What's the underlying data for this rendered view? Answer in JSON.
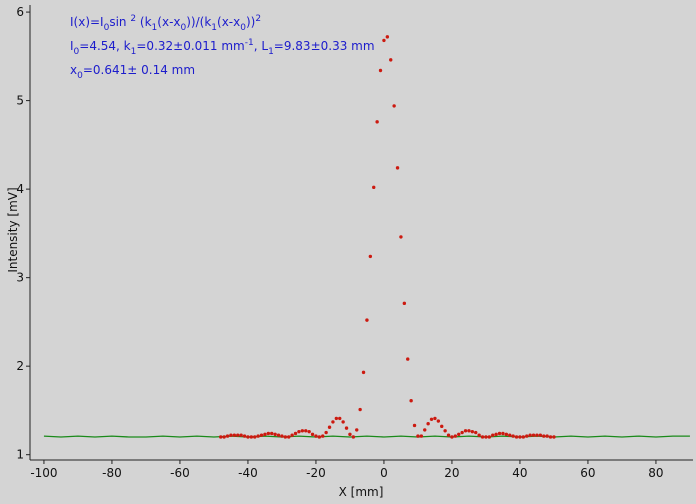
{
  "chart_data": {
    "type": "scatter",
    "xlabel": "X [mm]",
    "ylabel": "Intensity [mV]",
    "xlim": [
      -104.1,
      90.9
    ],
    "ylim": [
      0.94,
      6.08
    ],
    "xticks": [
      -100,
      -80,
      -60,
      -40,
      -20,
      0,
      20,
      40,
      60,
      80
    ],
    "yticks": [
      1,
      2,
      3,
      4,
      5,
      6
    ],
    "grid": false,
    "annotations": [
      [
        {
          "text": "I(x)=I"
        },
        {
          "text": "0",
          "pos": "sub"
        },
        {
          "text": "sin "
        },
        {
          "text": "2",
          "pos": "sup"
        },
        {
          "text": " (k"
        },
        {
          "text": "1",
          "pos": "sub"
        },
        {
          "text": "(x-x"
        },
        {
          "text": "0",
          "pos": "sub"
        },
        {
          "text": "))/(k"
        },
        {
          "text": "1",
          "pos": "sub"
        },
        {
          "text": "(x-x"
        },
        {
          "text": "0",
          "pos": "sub"
        },
        {
          "text": "))"
        },
        {
          "text": "2",
          "pos": "sup"
        }
      ],
      [
        {
          "text": "I"
        },
        {
          "text": "0",
          "pos": "sub"
        },
        {
          "text": "=4.54,  k"
        },
        {
          "text": "1",
          "pos": "sub"
        },
        {
          "text": "=0.32±0.011 mm"
        },
        {
          "text": "-1",
          "pos": "sup"
        },
        {
          "text": ",   L"
        },
        {
          "text": "1",
          "pos": "sub"
        },
        {
          "text": "=9.83±0.33 mm"
        }
      ],
      [
        {
          "text": "x"
        },
        {
          "text": "0",
          "pos": "sub"
        },
        {
          "text": "=0.641±  0.14 mm"
        }
      ]
    ],
    "annotation_color": "#1c1ccc",
    "series": [
      {
        "style": "line",
        "color": "#1a8a1a",
        "x": [
          -100,
          -95,
          -90,
          -85,
          -80,
          -75,
          -70,
          -65,
          -60,
          -55,
          -50,
          -45,
          -40,
          -35,
          -30,
          -25,
          -20,
          -15,
          -10,
          -5,
          0,
          5,
          10,
          15,
          20,
          25,
          30,
          35,
          40,
          45,
          50,
          55,
          60,
          65,
          70,
          75,
          80,
          85,
          90
        ],
        "values": [
          1.21,
          1.2,
          1.21,
          1.2,
          1.21,
          1.2,
          1.2,
          1.21,
          1.2,
          1.21,
          1.2,
          1.21,
          1.2,
          1.21,
          1.2,
          1.21,
          1.2,
          1.21,
          1.2,
          1.21,
          1.2,
          1.21,
          1.2,
          1.21,
          1.2,
          1.21,
          1.2,
          1.21,
          1.2,
          1.21,
          1.2,
          1.21,
          1.2,
          1.21,
          1.2,
          1.21,
          1.2,
          1.21,
          1.21
        ]
      },
      {
        "style": "points",
        "color": "#cc1a10",
        "x": [
          -48,
          -47,
          -46,
          -45,
          -44,
          -43,
          -42,
          -41,
          -40,
          -39,
          -38,
          -37,
          -36,
          -35,
          -34,
          -33,
          -32,
          -31,
          -30,
          -29,
          -28,
          -27,
          -26,
          -25,
          -24,
          -23,
          -22,
          -21,
          -20,
          -19,
          -18,
          -17,
          -16,
          -15,
          -14,
          -13,
          -12,
          -11,
          -10,
          -9,
          -8,
          -7,
          -6,
          -5,
          -4,
          -3,
          -2,
          -1,
          0,
          1,
          2,
          3,
          4,
          5,
          6,
          7,
          8,
          9,
          10,
          11,
          12,
          13,
          14,
          15,
          16,
          17,
          18,
          19,
          20,
          21,
          22,
          23,
          24,
          25,
          26,
          27,
          28,
          29,
          30,
          31,
          32,
          33,
          34,
          35,
          36,
          37,
          38,
          39,
          40,
          41,
          42,
          43,
          44,
          45,
          46,
          47,
          48,
          49,
          50
        ],
        "values": [
          1.2,
          1.2,
          1.21,
          1.22,
          1.22,
          1.22,
          1.22,
          1.21,
          1.2,
          1.2,
          1.2,
          1.21,
          1.22,
          1.23,
          1.24,
          1.24,
          1.23,
          1.22,
          1.21,
          1.2,
          1.2,
          1.22,
          1.24,
          1.26,
          1.27,
          1.27,
          1.26,
          1.23,
          1.21,
          1.2,
          1.21,
          1.25,
          1.31,
          1.37,
          1.41,
          1.41,
          1.37,
          1.3,
          1.23,
          1.2,
          1.28,
          1.51,
          1.93,
          2.52,
          3.24,
          4.02,
          4.76,
          5.34,
          5.68,
          5.72,
          5.46,
          4.94,
          4.24,
          3.46,
          2.71,
          2.08,
          1.61,
          1.33,
          1.21,
          1.21,
          1.28,
          1.35,
          1.4,
          1.41,
          1.38,
          1.32,
          1.27,
          1.22,
          1.2,
          1.21,
          1.23,
          1.25,
          1.27,
          1.27,
          1.26,
          1.25,
          1.22,
          1.2,
          1.2,
          1.2,
          1.22,
          1.23,
          1.24,
          1.24,
          1.23,
          1.22,
          1.21,
          1.2,
          1.2,
          1.2,
          1.21,
          1.22,
          1.22,
          1.22,
          1.22,
          1.21,
          1.21,
          1.2,
          1.2
        ]
      }
    ]
  }
}
